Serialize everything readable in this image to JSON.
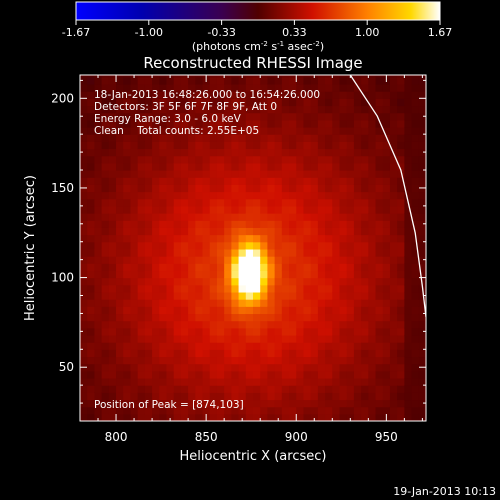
{
  "chart_data": {
    "type": "heatmap",
    "title": "Reconstructed RHESSI Image",
    "xlabel": "Heliocentric X (arcsec)",
    "ylabel": "Heliocentric Y (arcsec)",
    "xlim": [
      780,
      972
    ],
    "ylim": [
      20,
      213
    ],
    "xticks": [
      800,
      850,
      900,
      950
    ],
    "yticks": [
      50,
      100,
      150,
      200
    ],
    "colorbar": {
      "min": -1.67,
      "max": 1.67,
      "ticks": [
        "-1.67",
        "-1.00",
        "-0.33",
        "0.33",
        "1.00",
        "1.67"
      ],
      "unit_prefix": "(photons cm",
      "unit_sup1": "-2",
      "unit_mid1": " s",
      "unit_sup2": "-1",
      "unit_mid2": " asec",
      "unit_sup3": "-2",
      "unit_suffix": ")"
    },
    "annotations": [
      "18-Jan-2013 16:48:26.000 to 16:54:26.000",
      "Detectors: 3F 5F 6F 7F 8F 9F, Att 0",
      "Energy Range: 3.0 - 6.0 keV",
      "Clean    Total counts: 2.55E+05"
    ],
    "peak_label": "Position of Peak = [874,103]",
    "peak": [
      874,
      103
    ],
    "peak_intensity": 1.67,
    "source_sigma_x": 6.5,
    "source_sigma_y": 11,
    "halo_intensity": 0.7,
    "limb": [
      [
        930,
        213
      ],
      [
        945,
        190
      ],
      [
        958,
        160
      ],
      [
        966,
        125
      ],
      [
        970,
        95
      ],
      [
        972,
        78
      ]
    ]
  },
  "footer": {
    "date": "19-Jan-2013 10:13"
  }
}
